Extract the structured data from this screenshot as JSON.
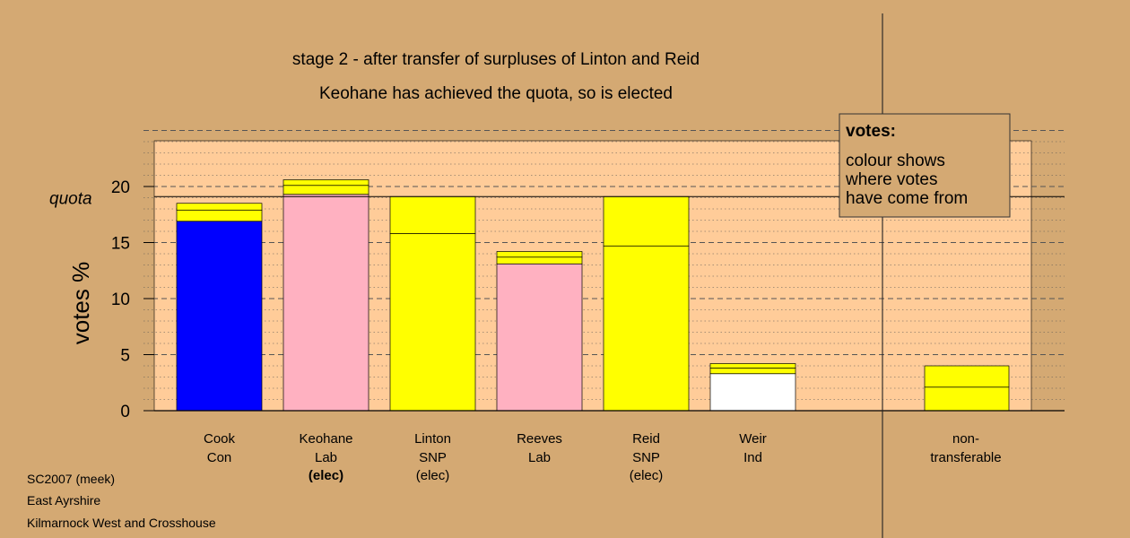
{
  "chart_data": {
    "type": "bar",
    "stacked": true,
    "title": "stage 2 - after transfer of surpluses of Linton and Reid",
    "subtitle": "Keohane has achieved the quota, so is elected",
    "ylabel": "votes %",
    "ylim": [
      0,
      25
    ],
    "yticks": [
      0,
      5,
      10,
      15,
      20
    ],
    "quota": 19.1,
    "quota_label": "quota",
    "grid": "dotted-horizontal",
    "categories": [
      {
        "name": "Cook",
        "party": "Con",
        "status": ""
      },
      {
        "name": "Keohane",
        "party": "Lab",
        "status": "(elec)"
      },
      {
        "name": "Linton",
        "party": "SNP",
        "status": "(elec)"
      },
      {
        "name": "Reeves",
        "party": "Lab",
        "status": ""
      },
      {
        "name": "Reid",
        "party": "SNP",
        "status": "(elec)"
      },
      {
        "name": "Weir",
        "party": "Ind",
        "status": ""
      }
    ],
    "nontransferable": {
      "line1": "non-",
      "line2": "transferable",
      "segments": [
        {
          "value": 2.1,
          "color": "#ffff00"
        },
        {
          "value": 1.9,
          "color": "#ffff00"
        }
      ]
    },
    "bars": [
      [
        {
          "value": 16.9,
          "color": "#0000ff"
        },
        {
          "value": 1.0,
          "color": "#ffff00"
        },
        {
          "value": 0.6,
          "color": "#ffff00"
        }
      ],
      [
        {
          "value": 19.3,
          "color": "#ffb1c1"
        },
        {
          "value": 0.8,
          "color": "#ffff00"
        },
        {
          "value": 0.5,
          "color": "#ffff00"
        }
      ],
      [
        {
          "value": 15.8,
          "color": "#ffff00"
        },
        {
          "value": 3.3,
          "color": "#ffff00"
        }
      ],
      [
        {
          "value": 13.1,
          "color": "#ffb1c1"
        },
        {
          "value": 0.6,
          "color": "#ffff00"
        },
        {
          "value": 0.5,
          "color": "#ffff00"
        }
      ],
      [
        {
          "value": 14.7,
          "color": "#ffff00"
        },
        {
          "value": 4.4,
          "color": "#ffff00"
        }
      ],
      [
        {
          "value": 3.3,
          "color": "#ffffff"
        },
        {
          "value": 0.5,
          "color": "#ffff00"
        },
        {
          "value": 0.4,
          "color": "#ffff00"
        }
      ]
    ],
    "legend": {
      "title": "votes:",
      "lines": [
        "colour shows",
        "where votes",
        "have come from"
      ],
      "placement": "top-right"
    }
  },
  "footer": {
    "line1": "SC2007 (meek)",
    "line2": "East Ayrshire",
    "line3": "Kilmarnock West and Crosshouse"
  }
}
